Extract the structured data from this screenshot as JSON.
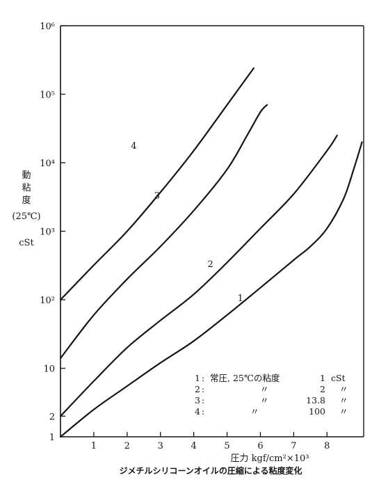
{
  "chart_data": {
    "type": "line",
    "title": "ジメチルシリコーンオイルの圧縮による粘度変化",
    "xlabel": "圧力 kgf/cm²×10³",
    "ylabel_lines": [
      "動",
      "粘",
      "度",
      "(25℃)",
      "cSt"
    ],
    "x_ticks": [
      "1",
      "2",
      "3",
      "4",
      "5",
      "6",
      "7",
      "8"
    ],
    "xlim": [
      0,
      9.1
    ],
    "y_scale": "log",
    "ylim": [
      1,
      1000000
    ],
    "y_ticks": [
      {
        "value": 1,
        "label": "1"
      },
      {
        "value": 2,
        "label": "2"
      },
      {
        "value": 10,
        "label": "10"
      },
      {
        "value": 100,
        "label": "10²"
      },
      {
        "value": 1000,
        "label": "10³"
      },
      {
        "value": 10000,
        "label": "10⁴"
      },
      {
        "value": 100000,
        "label": "10⁵"
      },
      {
        "value": 1000000,
        "label": "10⁶"
      }
    ],
    "grid": false,
    "series": [
      {
        "name": "1",
        "label_at": {
          "x": 5.4,
          "y": 95
        },
        "points": [
          [
            0,
            1
          ],
          [
            1,
            2.5
          ],
          [
            2,
            5.5
          ],
          [
            3,
            12
          ],
          [
            4,
            25
          ],
          [
            5,
            60
          ],
          [
            6,
            150
          ],
          [
            7,
            380
          ],
          [
            7.5,
            600
          ],
          [
            8,
            1100
          ],
          [
            8.5,
            3000
          ],
          [
            8.8,
            8000
          ],
          [
            9.05,
            20000
          ]
        ]
      },
      {
        "name": "2",
        "label_at": {
          "x": 4.5,
          "y": 300
        },
        "points": [
          [
            0,
            2
          ],
          [
            1,
            6.5
          ],
          [
            2,
            20
          ],
          [
            3,
            50
          ],
          [
            4,
            120
          ],
          [
            5,
            350
          ],
          [
            6,
            1100
          ],
          [
            7,
            3500
          ],
          [
            8,
            15000
          ],
          [
            8.3,
            25000
          ]
        ]
      },
      {
        "name": "3",
        "label_at": {
          "x": 2.9,
          "y": 3000
        },
        "points": [
          [
            0,
            14
          ],
          [
            1,
            60
          ],
          [
            2,
            200
          ],
          [
            3,
            600
          ],
          [
            4,
            2000
          ],
          [
            5,
            8000
          ],
          [
            5.6,
            25000
          ],
          [
            6,
            55000
          ],
          [
            6.2,
            70000
          ]
        ]
      },
      {
        "name": "4",
        "label_at": {
          "x": 2.2,
          "y": 16000
        },
        "points": [
          [
            0,
            100
          ],
          [
            1,
            320
          ],
          [
            2,
            1000
          ],
          [
            3,
            3700
          ],
          [
            4,
            15000
          ],
          [
            5,
            70000
          ],
          [
            5.8,
            240000
          ]
        ]
      }
    ],
    "legend": {
      "placement": "bottom-right",
      "rows": [
        {
          "num": "1",
          "desc": "常圧,  25℃の粘度",
          "value": "1",
          "unit": "cSt"
        },
        {
          "num": "2",
          "desc": "〃",
          "value": "2",
          "unit": "〃"
        },
        {
          "num": "3",
          "desc": "〃",
          "value": "13.8",
          "unit": "〃"
        },
        {
          "num": "4",
          "desc": "〃",
          "value": "100",
          "unit": "〃"
        }
      ]
    }
  }
}
